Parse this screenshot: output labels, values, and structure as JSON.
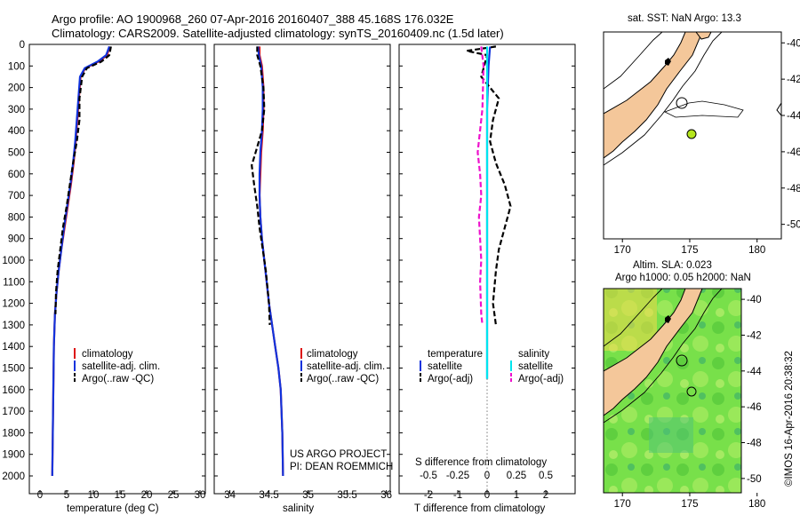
{
  "title": {
    "line1": "Argo profile: AO 1900968_260 07-Apr-2016 20160407_388 45.168S 176.032E",
    "line2": "Climatology: CARS2009. Satellite-adjusted climatology: synTS_20160409.nc (1.5d later)"
  },
  "depth_ticks": [
    "0",
    "100",
    "200",
    "300",
    "400",
    "500",
    "600",
    "700",
    "800",
    "900",
    "1000",
    "1100",
    "1200",
    "1300",
    "1400",
    "1500",
    "1600",
    "1700",
    "1800",
    "1900",
    "2000"
  ],
  "colors": {
    "climatology": "#dd1111",
    "satellite": "#1133dd",
    "argo": "#000000",
    "salinity_sat": "#00e5ee",
    "salinity_argo": "#ee11cc",
    "land": "#f4c79a",
    "float_marker": "#b5e61d"
  },
  "panels": {
    "temperature": {
      "xlabel": "temperature (deg C)",
      "ticks": [
        "0",
        "5",
        "10",
        "15",
        "20",
        "25",
        "30"
      ],
      "legend": [
        "climatology",
        "satellite-adj. clim.",
        "Argo(..raw -QC)"
      ]
    },
    "salinity": {
      "xlabel": "salinity",
      "ticks": [
        "34",
        "34.5",
        "35",
        "35.5",
        "36"
      ],
      "legend": [
        "climatology",
        "satellite-adj. clim.",
        "Argo(..raw -QC)"
      ],
      "note1": "US ARGO PROJECT",
      "note2": "PI: DEAN ROEMMICH"
    },
    "difference": {
      "xlabel": "T difference from climatology",
      "top_label": "S difference from climatology",
      "t_ticks": [
        "-2",
        "-1",
        "0",
        "1",
        "2"
      ],
      "s_ticks": [
        "-0.5",
        "-0.25",
        "0",
        "0.25",
        "0.5"
      ],
      "legend_temp_title": "temperature",
      "legend_sal_title": "salinity",
      "legend_temp": [
        "satellite",
        "Argo(-adj)"
      ],
      "legend_sal": [
        "satellite",
        "Argo(-adj)"
      ]
    },
    "map_sst": {
      "title": "sat. SST: NaN Argo: 13.3",
      "lat_ticks": [
        "-40",
        "-42",
        "-44",
        "-46",
        "-48",
        "-50"
      ],
      "lon_ticks": [
        "170",
        "175",
        "180"
      ]
    },
    "map_sla": {
      "title1": "Altim. SLA: 0.023",
      "title2": "Argo h1000: 0.05 h2000: NaN",
      "lat_ticks": [
        "-40",
        "-42",
        "-44",
        "-46",
        "-48",
        "-50"
      ],
      "lon_ticks": [
        "170",
        "175",
        "180"
      ]
    }
  },
  "credit": "©IMOS 16-Apr-2016 20:38:32",
  "chart_data": [
    {
      "type": "line",
      "title": "",
      "xlabel": "temperature (deg C)",
      "ylabel": "",
      "xlim": [
        -2,
        31
      ],
      "ylim": [
        2060,
        0
      ],
      "y_inverted": true,
      "series": [
        {
          "name": "climatology",
          "x": [
            13.0,
            12.6,
            11.0,
            8.5,
            7.6,
            7.3,
            7.0,
            6.7,
            6.3,
            5.8,
            5.2,
            4.6,
            4.0,
            3.5,
            3.1,
            2.8,
            2.6,
            2.5,
            2.4,
            2.3
          ],
          "y": [
            10,
            50,
            80,
            110,
            150,
            250,
            350,
            450,
            550,
            650,
            750,
            850,
            950,
            1050,
            1150,
            1250,
            1400,
            1600,
            1800,
            2000
          ]
        },
        {
          "name": "satellite-adj. clim.",
          "x": [
            13.0,
            12.4,
            10.8,
            8.4,
            7.5,
            7.2,
            6.9,
            6.6,
            6.2,
            5.7,
            5.1,
            4.5,
            4.0,
            3.5,
            3.1,
            2.8,
            2.6,
            2.5,
            2.4,
            2.3
          ],
          "y": [
            10,
            50,
            80,
            110,
            150,
            250,
            350,
            450,
            550,
            650,
            750,
            850,
            950,
            1050,
            1150,
            1250,
            1400,
            1600,
            1800,
            2000
          ]
        },
        {
          "name": "Argo(..raw -QC)",
          "x": [
            13.3,
            13.0,
            11.5,
            8.8,
            7.9,
            7.4,
            7.4,
            6.9,
            6.2,
            5.6,
            5.0,
            4.3,
            3.8,
            3.3,
            3.0,
            2.9
          ],
          "y": [
            10,
            50,
            80,
            110,
            150,
            250,
            350,
            450,
            550,
            650,
            750,
            850,
            950,
            1050,
            1150,
            1250
          ]
        }
      ]
    },
    {
      "type": "line",
      "title": "",
      "xlabel": "salinity",
      "ylabel": "",
      "xlim": [
        33.8,
        36.05
      ],
      "ylim": [
        2060,
        0
      ],
      "y_inverted": true,
      "series": [
        {
          "name": "climatology",
          "x": [
            34.38,
            34.38,
            34.41,
            34.43,
            34.43,
            34.42,
            34.4,
            34.39,
            34.38,
            34.39,
            34.41,
            34.44,
            34.47,
            34.5,
            34.54,
            34.58,
            34.62,
            34.65,
            34.67,
            34.68
          ],
          "y": [
            10,
            50,
            100,
            200,
            300,
            400,
            500,
            600,
            700,
            800,
            900,
            1000,
            1100,
            1200,
            1300,
            1400,
            1500,
            1600,
            1800,
            2000
          ]
        },
        {
          "name": "satellite-adj. clim.",
          "x": [
            34.36,
            34.37,
            34.4,
            34.42,
            34.42,
            34.41,
            34.39,
            34.38,
            34.38,
            34.39,
            34.41,
            34.44,
            34.47,
            34.5,
            34.54,
            34.58,
            34.62,
            34.65,
            34.67,
            34.68
          ],
          "y": [
            10,
            50,
            100,
            200,
            300,
            400,
            500,
            600,
            700,
            800,
            900,
            1000,
            1100,
            1200,
            1300,
            1400,
            1500,
            1600,
            1800,
            2000
          ]
        },
        {
          "name": "Argo(..raw -QC)",
          "x": [
            34.35,
            34.35,
            34.39,
            34.43,
            34.44,
            34.41,
            34.33,
            34.28,
            34.31,
            34.35,
            34.38,
            34.42,
            34.46,
            34.5,
            34.51
          ],
          "y": [
            10,
            50,
            100,
            200,
            300,
            400,
            500,
            560,
            650,
            750,
            850,
            950,
            1050,
            1200,
            1300
          ]
        }
      ]
    },
    {
      "type": "line",
      "title": "",
      "xlabel": "T difference from climatology",
      "ylabel": "",
      "xlim": [
        -3,
        3
      ],
      "ylim": [
        2060,
        0
      ],
      "y_inverted": true,
      "series": [
        {
          "name": "temperature satellite",
          "x": [
            0.1,
            0.05,
            0.0,
            0.0,
            0.0,
            0.0,
            0.0
          ],
          "y": [
            10,
            100,
            300,
            600,
            1000,
            1500,
            1550
          ]
        },
        {
          "name": "temperature Argo(-adj)",
          "x": [
            0.3,
            -0.7,
            0.0,
            -0.2,
            0.4,
            0.2,
            0.1,
            0.3,
            0.6,
            0.8,
            0.6,
            0.4,
            0.3,
            0.2,
            0.3
          ],
          "y": [
            10,
            30,
            50,
            150,
            250,
            350,
            450,
            550,
            650,
            750,
            850,
            950,
            1050,
            1200,
            1300
          ]
        },
        {
          "name": "salinity satellite",
          "x": [
            0.0,
            0.0,
            0.0,
            0.0,
            0.0,
            0.0
          ],
          "y": [
            10,
            200,
            600,
            1000,
            1500,
            1550
          ]
        },
        {
          "name": "salinity Argo(-adj)",
          "x": [
            -0.05,
            -0.03,
            -0.04,
            -0.08,
            -0.06,
            -0.05,
            -0.07,
            -0.06,
            -0.05,
            -0.06,
            -0.05,
            -0.04
          ],
          "y": [
            10,
            100,
            300,
            500,
            600,
            700,
            800,
            900,
            1000,
            1100,
            1250,
            1300
          ]
        }
      ]
    }
  ]
}
